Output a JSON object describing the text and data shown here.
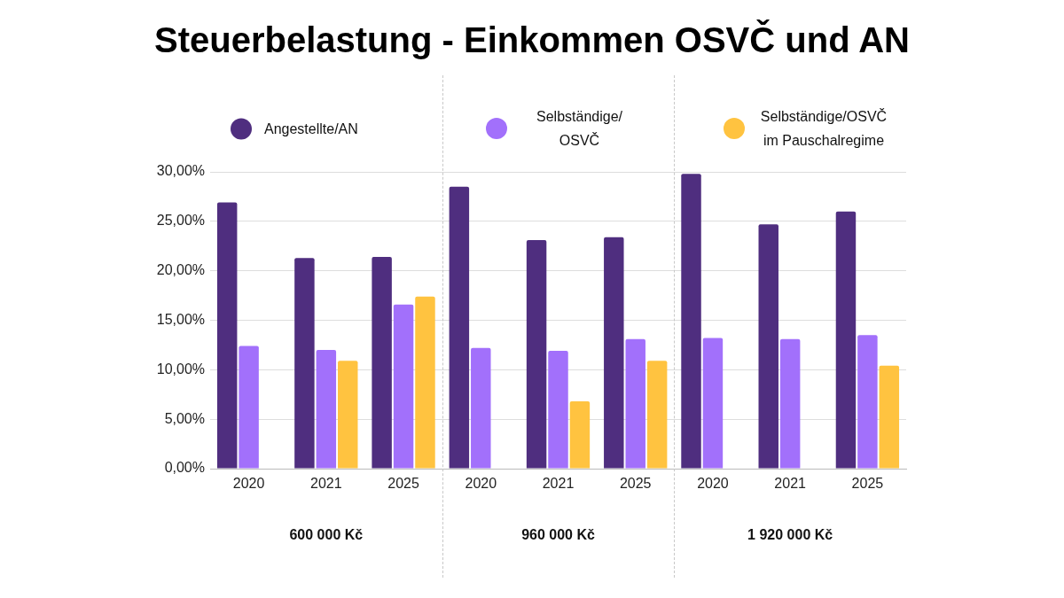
{
  "chart_data": {
    "type": "bar",
    "title": "Steuerbelastung - Einkommen OSVČ und AN",
    "categories": [
      "2020",
      "2021",
      "2025",
      "2020",
      "2021",
      "2025",
      "2020",
      "2021",
      "2025"
    ],
    "series": [
      {
        "name": "Angestellte/AN",
        "color": "#4f2e7f",
        "values": [
          26.9,
          21.3,
          21.4,
          28.5,
          23.1,
          23.4,
          29.8,
          24.7,
          26.0
        ]
      },
      {
        "name": "Selbständige/OSVČ",
        "color": "#a270fb",
        "values": [
          12.4,
          12.0,
          16.6,
          12.2,
          11.9,
          13.1,
          13.2,
          13.1,
          13.5
        ]
      },
      {
        "name": "Selbständige/OSVČ im Pauschalregime",
        "color": "#ffc340",
        "values": [
          null,
          10.9,
          17.4,
          null,
          6.8,
          10.9,
          null,
          null,
          10.4
        ]
      }
    ],
    "ylim": [
      0,
      30
    ],
    "yticks": [
      {
        "value": 0,
        "label": "0,00%"
      },
      {
        "value": 5,
        "label": "5,00%"
      },
      {
        "value": 10,
        "label": "10,00%"
      },
      {
        "value": 15,
        "label": "15,00%"
      },
      {
        "value": 20,
        "label": "20,00%"
      },
      {
        "value": 25,
        "label": "25,00%"
      },
      {
        "value": 30,
        "label": "30,00%"
      }
    ],
    "grid": "y",
    "legend": "top",
    "annotations": [
      "600 000 Kč",
      "960 000 Kč",
      "1 920 000 Kč"
    ]
  }
}
